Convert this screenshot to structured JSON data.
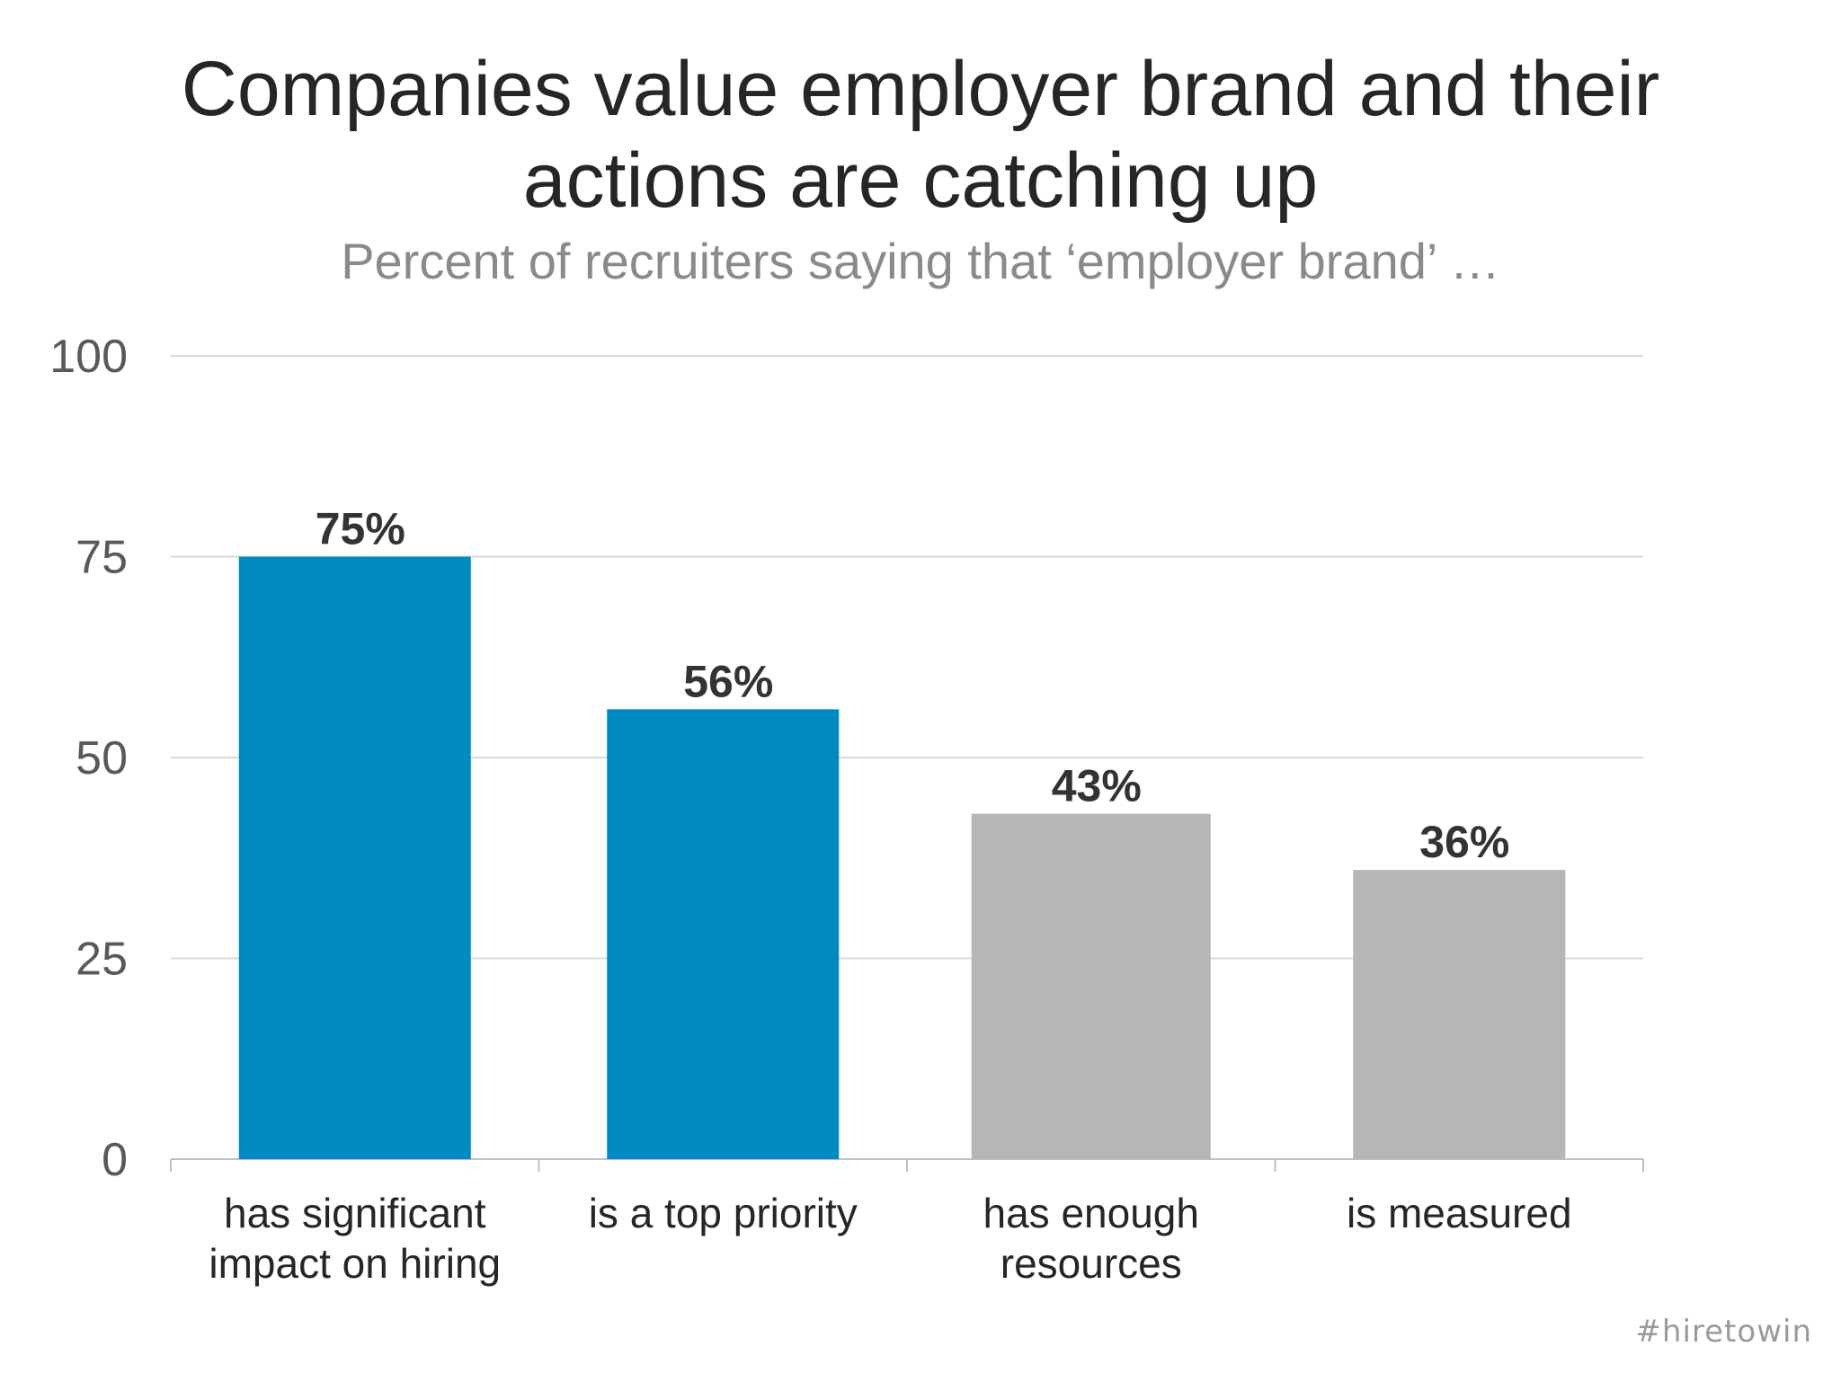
{
  "chart_data": {
    "type": "bar",
    "title_lines": [
      "Companies value employer brand and their",
      "actions are catching up"
    ],
    "subtitle": "Percent of recruiters saying that ‘employer brand’ …",
    "categories": [
      [
        "has significant",
        "impact on hiring"
      ],
      [
        "is a top priority"
      ],
      [
        "has enough",
        "resources"
      ],
      [
        "is measured"
      ]
    ],
    "values": [
      75,
      56,
      43,
      36
    ],
    "data_labels": [
      "75%",
      "56%",
      "43%",
      "36%"
    ],
    "bar_colors": [
      "#008AC2",
      "#008AC2",
      "#B6B5B8",
      "#B6B5B8"
    ],
    "ylim": [
      0,
      100
    ],
    "yticks": [
      0,
      25,
      50,
      75,
      100
    ],
    "grid": true,
    "legend": "none"
  },
  "watermark": "#hiretowin"
}
